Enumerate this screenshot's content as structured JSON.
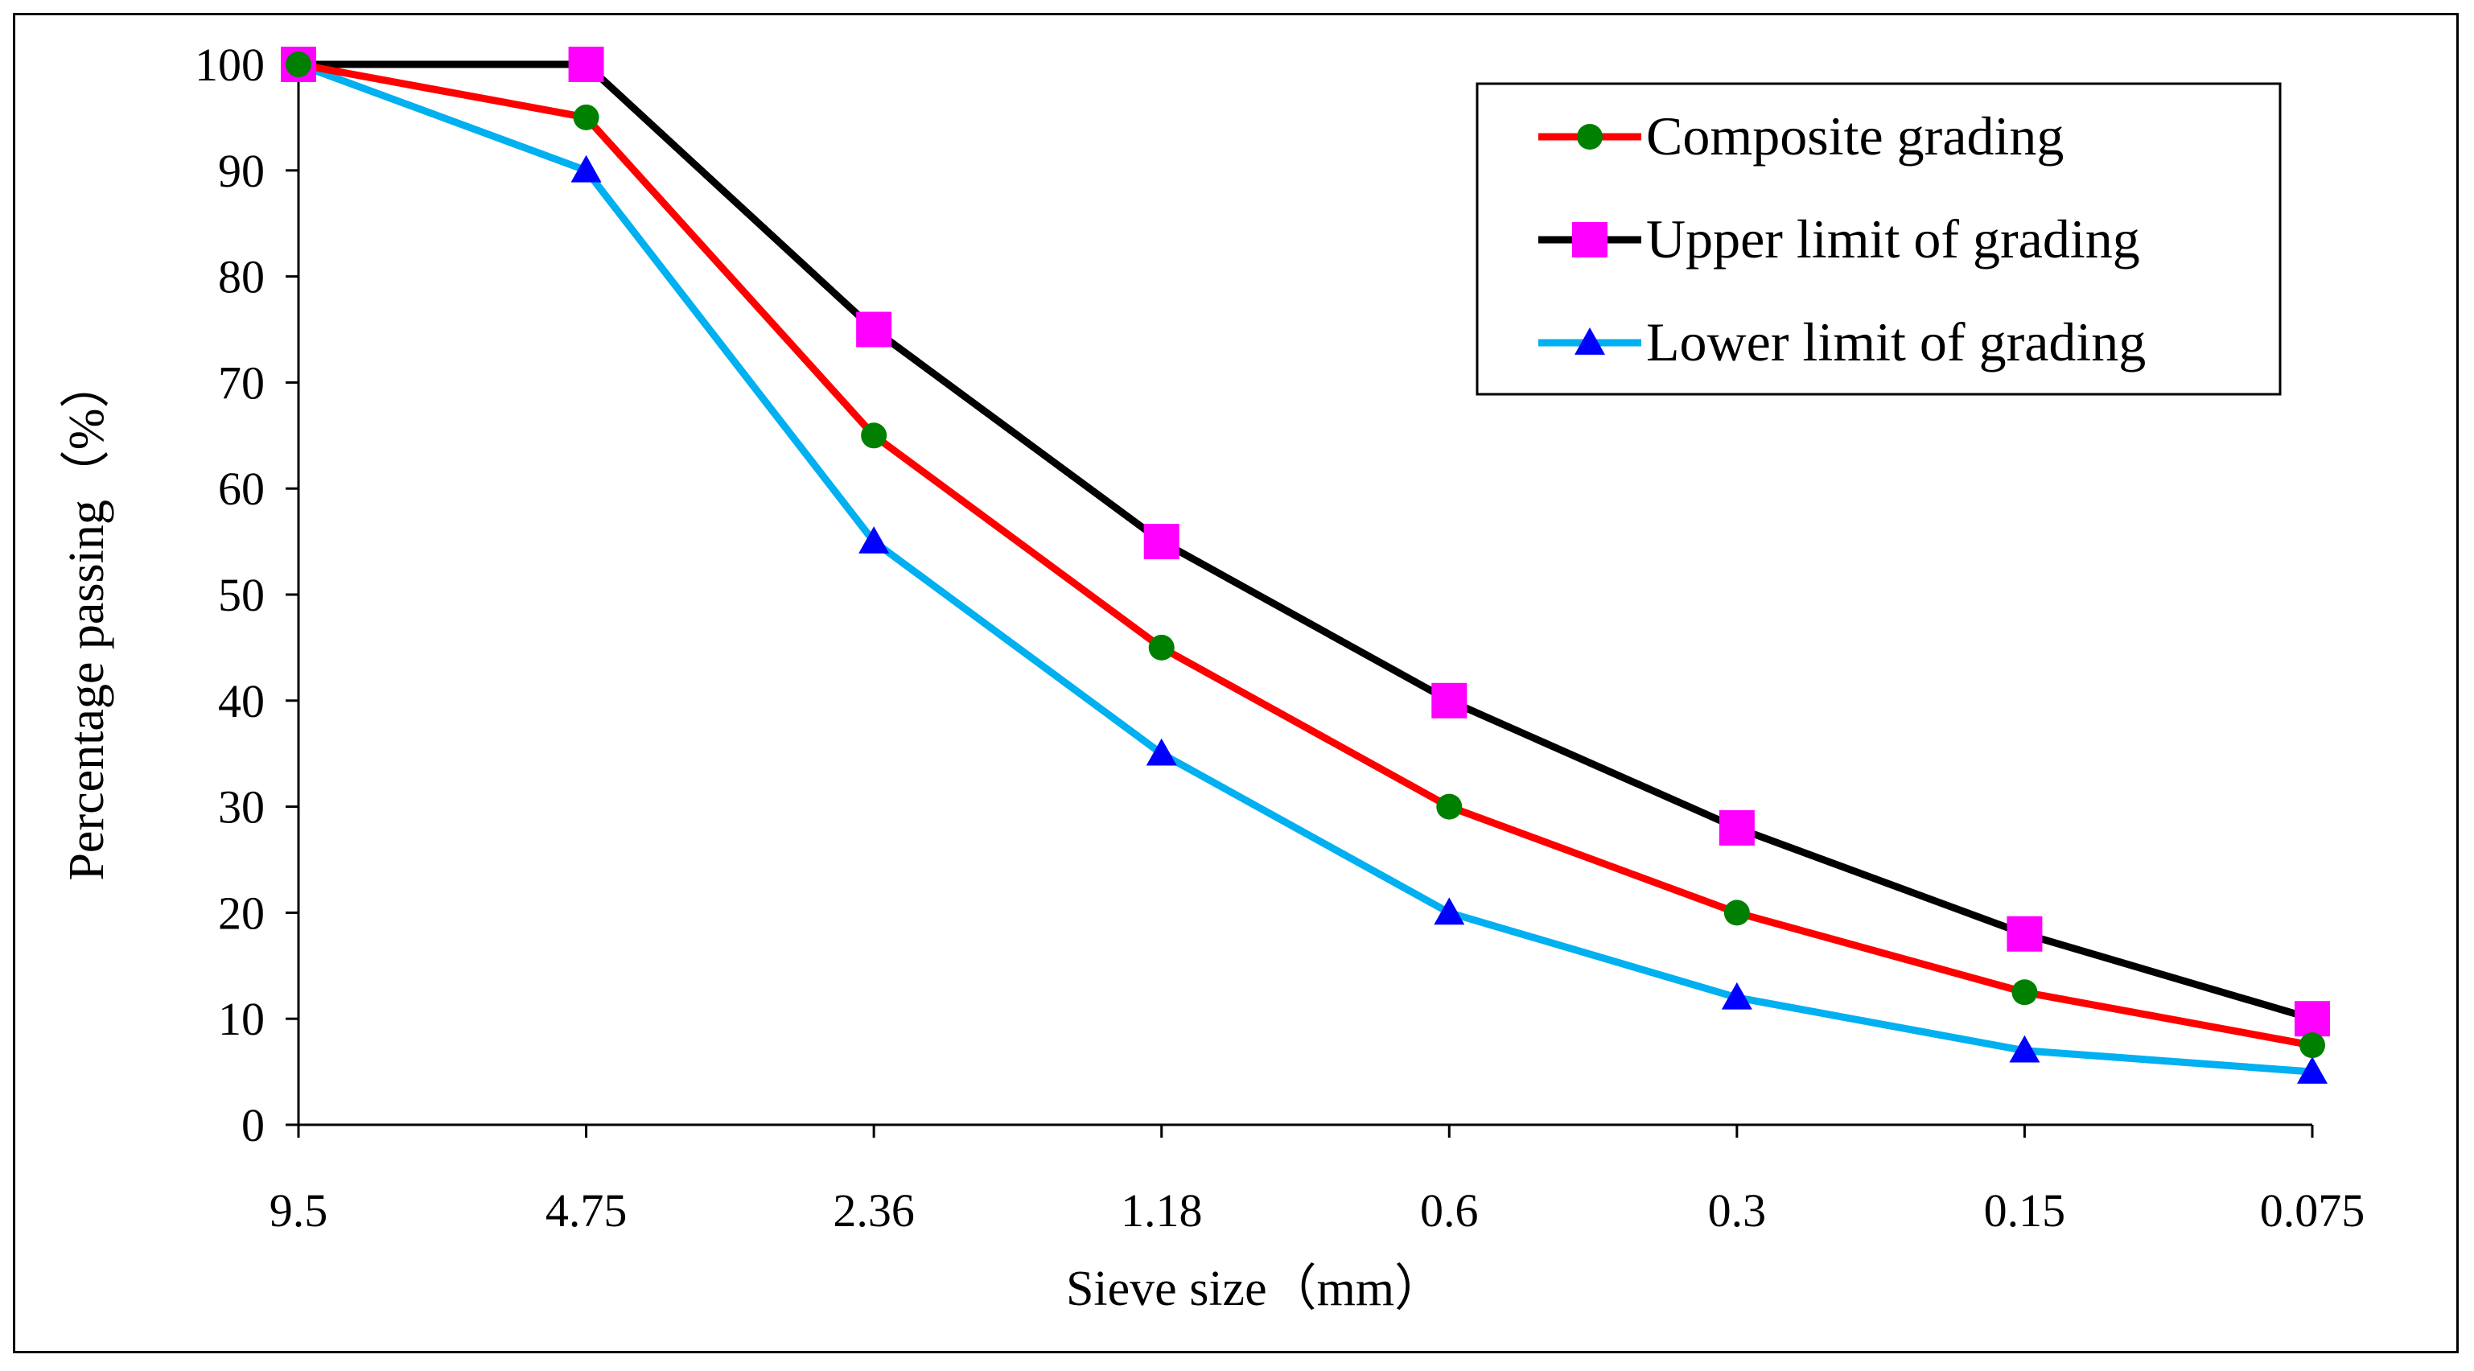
{
  "chart_data": {
    "type": "line",
    "title": "",
    "xlabel": "Sieve size（mm）",
    "ylabel": "Percentage passing（%）",
    "categories": [
      "9.5",
      "4.75",
      "2.36",
      "1.18",
      "0.6",
      "0.3",
      "0.15",
      "0.075"
    ],
    "ylim": [
      0,
      100
    ],
    "yticks": [
      "0",
      "10",
      "20",
      "30",
      "40",
      "50",
      "60",
      "70",
      "80",
      "90",
      "100"
    ],
    "grid": false,
    "legend_position": "top-right",
    "series": [
      {
        "name": "Composite grading",
        "values": [
          100,
          95,
          65,
          45,
          30,
          20,
          12.5,
          7.5
        ],
        "line_color": "#ff0000",
        "marker": "circle",
        "marker_color": "#008000"
      },
      {
        "name": "Upper limit of grading",
        "values": [
          100,
          100,
          75,
          55,
          40,
          28,
          18,
          10
        ],
        "line_color": "#000000",
        "marker": "square",
        "marker_color": "#ff00ff"
      },
      {
        "name": "Lower limit of grading",
        "values": [
          100,
          90,
          55,
          35,
          20,
          12,
          7,
          5
        ],
        "line_color": "#00b0f0",
        "marker": "triangle",
        "marker_color": "#0000ff"
      }
    ]
  }
}
